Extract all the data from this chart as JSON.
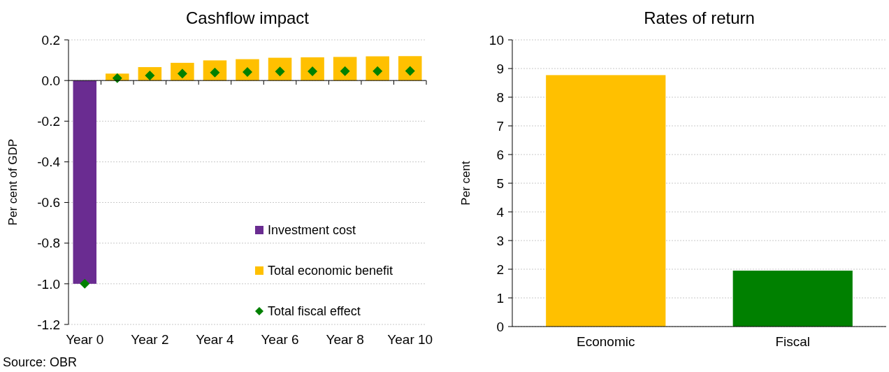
{
  "chart_data": [
    {
      "type": "bar",
      "title": "Cashflow impact",
      "ylabel": "Per cent of GDP",
      "categories": [
        "Year 0",
        null,
        "Year 2",
        null,
        "Year 4",
        null,
        "Year 6",
        null,
        "Year 8",
        null,
        "Year 10"
      ],
      "series": [
        {
          "name": "Investment cost",
          "color": "#6a2c91",
          "values": [
            -1.0,
            null,
            null,
            null,
            null,
            null,
            null,
            null,
            null,
            null,
            null
          ]
        },
        {
          "name": "Total economic benefit",
          "color": "#ffc000",
          "values": [
            null,
            0.034,
            0.066,
            0.087,
            0.099,
            0.105,
            0.112,
            0.114,
            0.116,
            0.119,
            0.12
          ]
        },
        {
          "name": "Total fiscal effect",
          "type": "scatter",
          "marker": "diamond",
          "color": "#008000",
          "values": [
            -1.0,
            0.012,
            0.025,
            0.034,
            0.039,
            0.042,
            0.044,
            0.045,
            0.046,
            0.046,
            0.047
          ]
        }
      ],
      "ylim": [
        -1.2,
        0.2
      ],
      "yticks": [
        {
          "value": -1.2,
          "label": "-1.2"
        },
        {
          "value": -1.0,
          "label": "-1.0"
        },
        {
          "value": -0.8,
          "label": "-0.8"
        },
        {
          "value": -0.6,
          "label": "-0.6"
        },
        {
          "value": -0.4,
          "label": "-0.4"
        },
        {
          "value": -0.2,
          "label": "-0.2"
        },
        {
          "value": 0,
          "label": "0.0"
        },
        {
          "value": 0.2,
          "label": "0.2"
        }
      ],
      "grid": "y",
      "legend": "bottom right",
      "annotations": [
        "Source: OBR"
      ]
    },
    {
      "type": "bar",
      "title": "Rates of return",
      "ylabel": "Per cent",
      "categories": [
        "Economic",
        "Fiscal"
      ],
      "values": [
        8.77,
        1.95
      ],
      "colors": [
        "#ffc000",
        "#008000"
      ],
      "ylim": [
        0,
        10
      ],
      "yticks": [
        0,
        1,
        2,
        3,
        4,
        5,
        6,
        7,
        8,
        9,
        10
      ],
      "grid": "y"
    }
  ]
}
